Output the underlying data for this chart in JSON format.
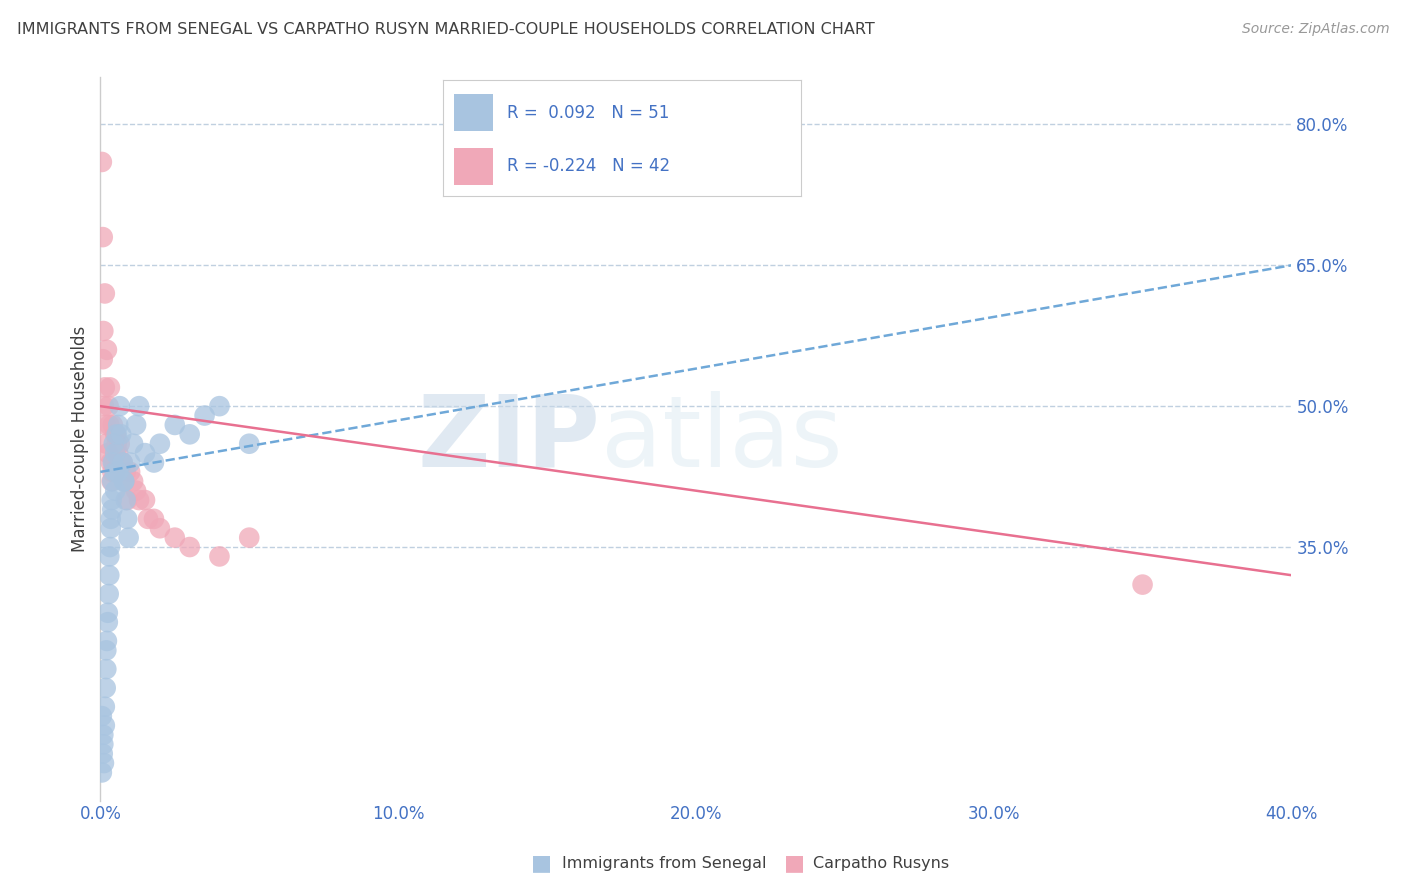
{
  "title": "IMMIGRANTS FROM SENEGAL VS CARPATHO RUSYN MARRIED-COUPLE HOUSEHOLDS CORRELATION CHART",
  "source": "Source: ZipAtlas.com",
  "ylabel": "Married-couple Households",
  "xlim": [
    0.0,
    40.0
  ],
  "ylim": [
    8.0,
    85.0
  ],
  "xticks": [
    0.0,
    10.0,
    20.0,
    30.0,
    40.0
  ],
  "yticks": [
    35.0,
    50.0,
    65.0,
    80.0
  ],
  "legend_r_blue": "0.092",
  "legend_n_blue": "51",
  "legend_r_pink": "-0.224",
  "legend_n_pink": "42",
  "blue_color": "#a8c4e0",
  "pink_color": "#f0a8b8",
  "trend_blue_color": "#6fa8d8",
  "trend_pink_color": "#e87090",
  "watermark_zip": "ZIP",
  "watermark_atlas": "atlas",
  "blue_scatter_x": [
    0.05,
    0.08,
    0.1,
    0.12,
    0.15,
    0.18,
    0.2,
    0.22,
    0.25,
    0.28,
    0.3,
    0.32,
    0.35,
    0.38,
    0.4,
    0.42,
    0.45,
    0.48,
    0.5,
    0.55,
    0.6,
    0.65,
    0.7,
    0.75,
    0.8,
    0.85,
    0.9,
    0.95,
    1.0,
    1.1,
    1.2,
    1.3,
    1.5,
    1.8,
    2.0,
    2.5,
    3.0,
    3.5,
    4.0,
    5.0,
    0.05,
    0.1,
    0.15,
    0.2,
    0.25,
    0.3,
    0.35,
    0.4,
    0.5,
    0.6,
    0.8
  ],
  "blue_scatter_y": [
    11.0,
    13.0,
    15.0,
    12.0,
    18.0,
    20.0,
    22.0,
    25.0,
    28.0,
    30.0,
    32.0,
    35.0,
    38.0,
    40.0,
    42.0,
    44.0,
    46.0,
    43.0,
    45.0,
    47.0,
    48.0,
    50.0,
    47.0,
    44.0,
    42.0,
    40.0,
    38.0,
    36.0,
    44.0,
    46.0,
    48.0,
    50.0,
    45.0,
    44.0,
    46.0,
    48.0,
    47.0,
    49.0,
    50.0,
    46.0,
    17.0,
    14.0,
    16.0,
    24.0,
    27.0,
    34.0,
    37.0,
    39.0,
    41.0,
    43.0,
    42.0
  ],
  "pink_scatter_x": [
    0.05,
    0.08,
    0.1,
    0.12,
    0.15,
    0.18,
    0.2,
    0.25,
    0.28,
    0.3,
    0.35,
    0.38,
    0.4,
    0.45,
    0.5,
    0.55,
    0.6,
    0.7,
    0.8,
    0.9,
    1.0,
    1.1,
    1.2,
    1.5,
    1.8,
    2.0,
    2.5,
    3.0,
    4.0,
    5.0,
    0.08,
    0.15,
    0.22,
    0.32,
    0.42,
    0.52,
    0.65,
    0.75,
    0.85,
    1.3,
    1.6,
    35.0
  ],
  "pink_scatter_y": [
    76.0,
    55.0,
    58.0,
    50.0,
    52.0,
    48.0,
    46.0,
    45.0,
    50.0,
    48.0,
    44.0,
    42.0,
    43.0,
    44.0,
    47.0,
    46.0,
    45.0,
    44.0,
    42.0,
    40.0,
    43.0,
    42.0,
    41.0,
    40.0,
    38.0,
    37.0,
    36.0,
    35.0,
    34.0,
    36.0,
    68.0,
    62.0,
    56.0,
    52.0,
    48.0,
    47.0,
    46.0,
    44.0,
    43.0,
    40.0,
    38.0,
    31.0
  ],
  "blue_trend_x": [
    0.0,
    40.0
  ],
  "blue_trend_y": [
    43.0,
    65.0
  ],
  "pink_trend_x": [
    0.0,
    40.0
  ],
  "pink_trend_y": [
    50.0,
    32.0
  ],
  "background_color": "#ffffff",
  "grid_color": "#c0d0e0",
  "title_color": "#404040",
  "tick_label_color": "#4472c4",
  "right_tick_color": "#4472c4"
}
